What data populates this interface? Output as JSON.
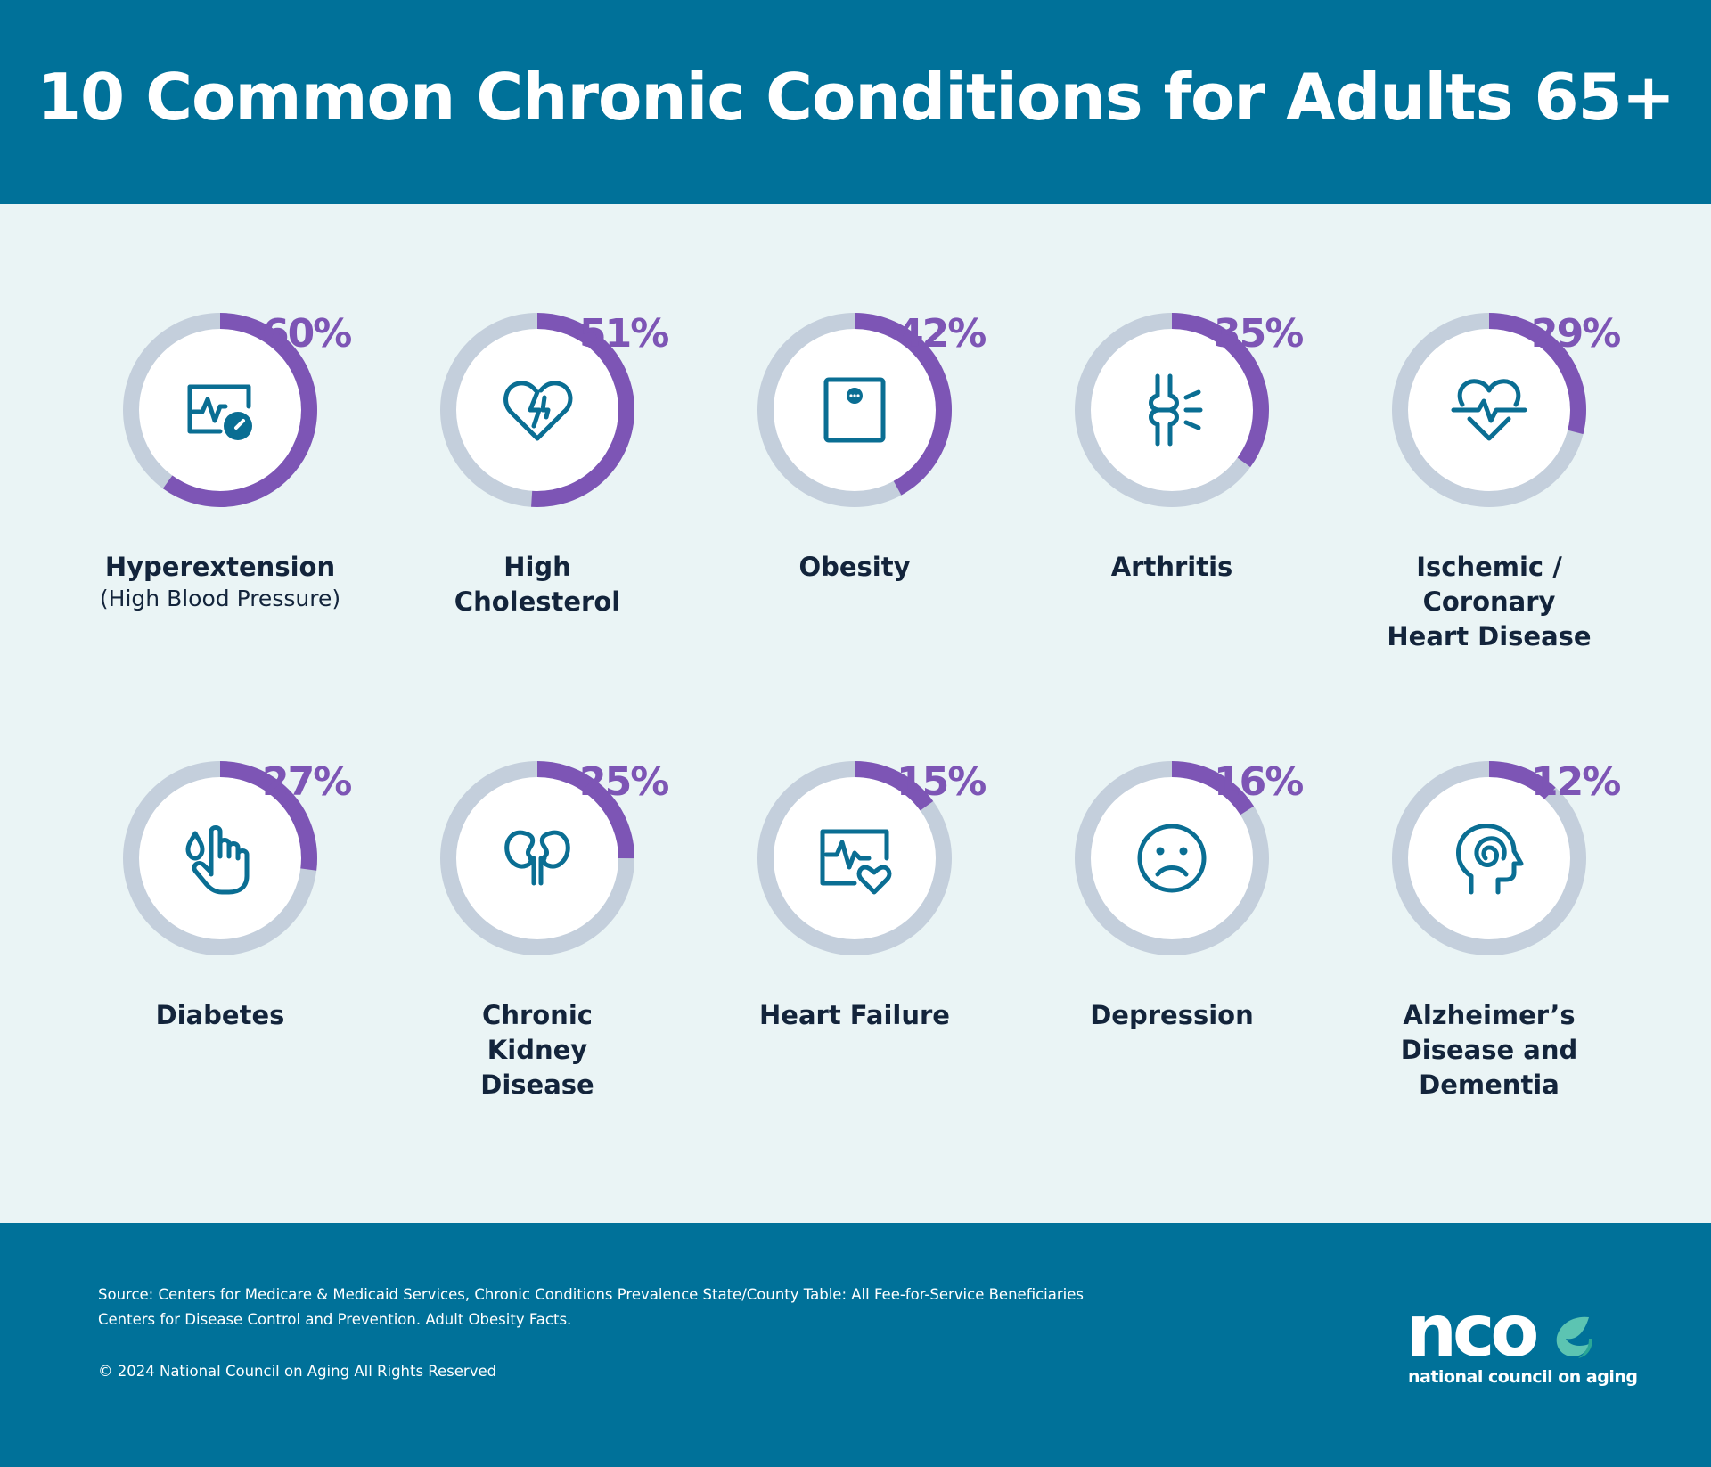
{
  "title": "10 Common Chronic Conditions for Adults 65+",
  "colors": {
    "header_bg": "#007199",
    "body_bg": "#eaf4f5",
    "ring_track": "#c4cfdc",
    "ring_fill": "#7d55b5",
    "icon": "#0a6e93",
    "label": "#13243b"
  },
  "chart_data": {
    "type": "donut-grid",
    "title": "10 Common Chronic Conditions for Adults 65+",
    "unit": "percent of adults 65+",
    "items": [
      {
        "name": "Hyperextension",
        "sub": "(High Blood Pressure)",
        "value": 60,
        "label": "60%",
        "icon": "blood-pressure-monitor-icon"
      },
      {
        "name": "High Cholesterol",
        "sub": "",
        "value": 51,
        "label": "51%",
        "icon": "broken-heart-icon"
      },
      {
        "name": "Obesity",
        "sub": "",
        "value": 42,
        "label": "42%",
        "icon": "scale-icon"
      },
      {
        "name": "Arthritis",
        "sub": "",
        "value": 35,
        "label": "35%",
        "icon": "joint-icon"
      },
      {
        "name": "Ischemic / Coronary Heart Disease",
        "sub": "",
        "value": 29,
        "label": "29%",
        "icon": "heartbeat-icon"
      },
      {
        "name": "Diabetes",
        "sub": "",
        "value": 27,
        "label": "27%",
        "icon": "blood-drop-finger-icon"
      },
      {
        "name": "Chronic Kidney Disease",
        "sub": "",
        "value": 25,
        "label": "25%",
        "icon": "kidneys-icon"
      },
      {
        "name": "Heart Failure",
        "sub": "",
        "value": 15,
        "label": "15%",
        "icon": "heart-monitor-icon"
      },
      {
        "name": "Depression",
        "sub": "",
        "value": 16,
        "label": "16%",
        "icon": "sad-face-icon"
      },
      {
        "name": "Alzheimer’s Disease and Dementia",
        "sub": "",
        "value": 12,
        "label": "12%",
        "icon": "brain-head-icon"
      }
    ]
  },
  "footer": {
    "source_line1": "Source: Centers for Medicare & Medicaid Services, Chronic Conditions Prevalence State/County Table: All Fee-for-Service Beneficiaries",
    "source_line2": "Centers for Disease Control and Prevention. Adult Obesity Facts.",
    "copyright": "© 2024 National Council on Aging All Rights Reserved",
    "logo_word": "nco",
    "logo_tagline": "national council on aging"
  }
}
